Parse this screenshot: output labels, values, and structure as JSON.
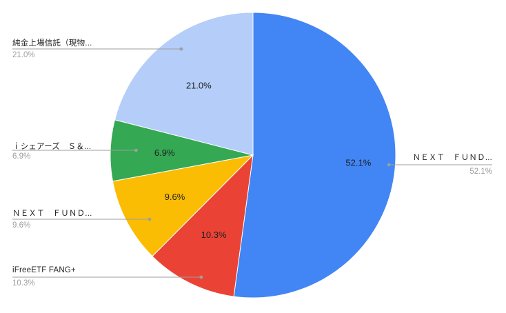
{
  "chart_data": {
    "type": "pie",
    "title": "",
    "start_angle_deg": 0,
    "direction": "clockwise",
    "slices": [
      {
        "name": "ＮＥＸＴ　ＦＵＮＤ...",
        "value": 52.1,
        "label": "52.1%",
        "legend_value": "52.1%",
        "color": "#4285f4",
        "side": "right"
      },
      {
        "name": "iFreeETF FANG+",
        "value": 10.3,
        "label": "10.3%",
        "legend_value": "10.3%",
        "color": "#ea4335",
        "side": "left"
      },
      {
        "name": "ＮＥＸＴ　ＦＵＮＤ...",
        "value": 9.6,
        "label": "9.6%",
        "legend_value": "9.6%",
        "color": "#fbbc04",
        "side": "left"
      },
      {
        "name": "ｉシェアーズ　Ｓ＆...",
        "value": 6.9,
        "label": "6.9%",
        "legend_value": "6.9%",
        "color": "#34a853",
        "side": "left"
      },
      {
        "name": "純金上場信託（現物...",
        "value": 21.0,
        "label": "21.0%",
        "legend_value": "21.0%",
        "color": "#b4cdf9",
        "side": "left"
      }
    ],
    "legend_placement": "labels-with-leader-lines",
    "grid": false
  }
}
